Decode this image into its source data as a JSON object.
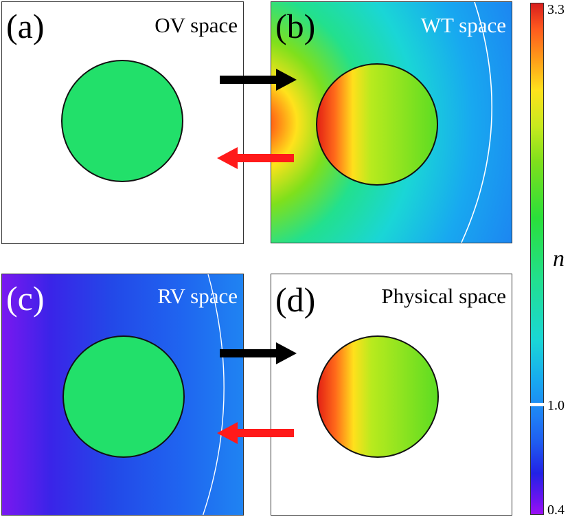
{
  "panels": {
    "a": {
      "label": "(a)",
      "title": "OV space"
    },
    "b": {
      "label": "(b)",
      "title": "WT space"
    },
    "c": {
      "label": "(c)",
      "title": "RV space"
    },
    "d": {
      "label": "(d)",
      "title": "Physical space"
    }
  },
  "colorbar": {
    "symbol": "n",
    "max": "3.3",
    "mid": "1.0",
    "min": "0.4"
  },
  "colors": {
    "arrow_forward": "#000000",
    "arrow_back": "#ff1a1a",
    "object": "#22e06a"
  }
}
